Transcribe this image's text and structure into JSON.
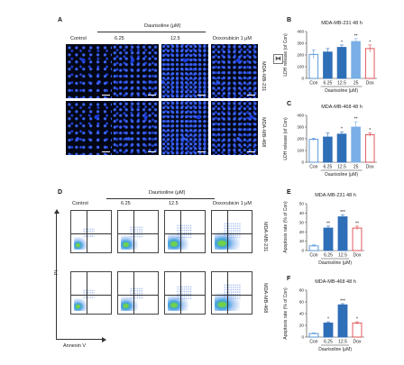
{
  "figure": {
    "panel_labels": {
      "a": "A",
      "b": "B",
      "c": "C",
      "d": "D",
      "e": "E",
      "f": "F"
    },
    "colors": {
      "con": "#4a8fd8",
      "low": "#2f6fb8",
      "mid": "#7aaee6",
      "high": "#a9cdf3",
      "dox": "#e0474c",
      "nuclei": "#1a3cd8"
    }
  },
  "panel_a": {
    "col_control": "Control",
    "treatment_header": "Daurisoline (μM)",
    "col_625": "6.25",
    "col_125": "12.5",
    "col_dox": "Doxorubicin 1 μM",
    "row_1": "MDA-MB-231",
    "row_2": "MDA-MB-468"
  },
  "panel_d": {
    "col_control": "Control",
    "treatment_header": "Daurisoline (μM)",
    "col_625": "6.25",
    "col_125": "12.5",
    "col_dox": "Doxorubicin 1 μM",
    "row_1": "MDA-MB-231",
    "row_2": "MDA-MB-468",
    "y_axis": "PI",
    "x_axis": "Annexin V"
  },
  "chart_data": [
    {
      "id": "B",
      "type": "bar",
      "title": "MDA-MB-231 48 h",
      "ylabel": "LDH release (of Con)",
      "xlabel": "Daurisoline (μM)",
      "categories": [
        "Con",
        "6.25",
        "12.5",
        "25",
        "Dox"
      ],
      "values": [
        205,
        225,
        265,
        315,
        255
      ],
      "errors": [
        35,
        30,
        20,
        25,
        30
      ],
      "significance": [
        "",
        "",
        "*",
        "**",
        "*"
      ],
      "yticks": [
        0,
        100,
        200,
        300,
        400
      ],
      "ylim": [
        0,
        400
      ]
    },
    {
      "id": "C",
      "type": "bar",
      "title": "MDA-MB-468 48 h",
      "ylabel": "LDH release (of Con)",
      "xlabel": "Daurisoline (μM)",
      "categories": [
        "Con",
        "6.25",
        "12.5",
        "25",
        "Dox"
      ],
      "values": [
        195,
        215,
        240,
        300,
        235
      ],
      "errors": [
        10,
        35,
        20,
        45,
        15
      ],
      "significance": [
        "",
        "",
        "*",
        "**",
        "*"
      ],
      "yticks": [
        0,
        100,
        200,
        300,
        400
      ],
      "ylim": [
        0,
        400
      ]
    },
    {
      "id": "E",
      "type": "bar",
      "title": "MDA-MB-231 48 h",
      "ylabel": "Apoptosis rate (% of Con)",
      "xlabel": "Daurisoline (μM)",
      "categories": [
        "Con",
        "6.25",
        "12.5",
        "Dox"
      ],
      "values": [
        5,
        24,
        36,
        24
      ],
      "errors": [
        1,
        2,
        2,
        2
      ],
      "significance": [
        "",
        "**",
        "***",
        "**"
      ],
      "yticks": [
        0,
        10,
        20,
        30,
        40,
        50
      ],
      "ylim": [
        0,
        50
      ]
    },
    {
      "id": "F",
      "type": "bar",
      "title": "MDA-MB-468 48 h",
      "ylabel": "Apoptosis rate (% of Con)",
      "xlabel": "Daurisoline (μM)",
      "categories": [
        "Con",
        "6.25",
        "12.5",
        "Dox"
      ],
      "values": [
        6,
        24,
        55,
        24
      ],
      "errors": [
        1,
        2,
        2,
        2
      ],
      "significance": [
        "",
        "*",
        "***",
        "*"
      ],
      "yticks": [
        0,
        20,
        40,
        60,
        80
      ],
      "ylim": [
        0,
        80
      ]
    }
  ]
}
